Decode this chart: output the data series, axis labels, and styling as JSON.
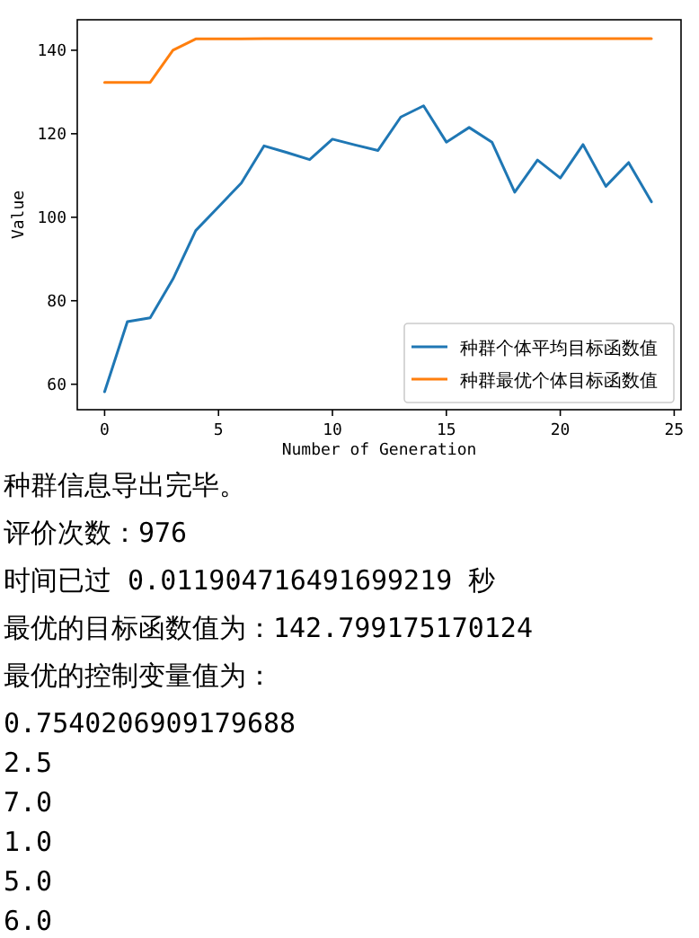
{
  "chart_data": {
    "type": "line",
    "xlabel": "Number of Generation",
    "ylabel": "Value",
    "xlim": [
      -1.2,
      25.3
    ],
    "ylim": [
      53.9,
      147.3
    ],
    "xticks": [
      0,
      5,
      10,
      15,
      20,
      25
    ],
    "yticks": [
      60,
      80,
      100,
      120,
      140
    ],
    "grid": false,
    "legend": "bottom right",
    "series": [
      {
        "name": "种群个体平均目标函数值",
        "color": "#1f77b4",
        "x": [
          0,
          1,
          2,
          3,
          4,
          5,
          6,
          7,
          8,
          9,
          10,
          11,
          12,
          13,
          14,
          15,
          16,
          17,
          18,
          19,
          20,
          21,
          22,
          23,
          24
        ],
        "values": [
          58.2,
          75.0,
          75.9,
          85.2,
          96.8,
          102.5,
          108.2,
          117.1,
          115.5,
          113.8,
          118.7,
          117.3,
          116.0,
          124.0,
          126.7,
          118.0,
          121.5,
          118.0,
          106.0,
          113.7,
          109.4,
          117.4,
          107.4,
          113.1,
          103.7
        ]
      },
      {
        "name": "种群最优个体目标函数值",
        "color": "#ff7f0e",
        "x": [
          0,
          1,
          2,
          3,
          4,
          5,
          6,
          7,
          8,
          9,
          10,
          11,
          12,
          13,
          14,
          15,
          16,
          17,
          18,
          19,
          20,
          21,
          22,
          23,
          24
        ],
        "values": [
          132.3,
          132.3,
          132.3,
          140.0,
          142.7,
          142.7,
          142.7,
          142.8,
          142.8,
          142.8,
          142.8,
          142.8,
          142.8,
          142.8,
          142.8,
          142.8,
          142.8,
          142.8,
          142.8,
          142.8,
          142.8,
          142.8,
          142.8,
          142.8,
          142.8
        ]
      }
    ],
    "annotations": [
      "种群信息导出完毕。",
      "评价次数：976",
      "时间已过 0.011904716491699219 秒",
      "最优的目标函数值为：142.799175170124",
      "最优的控制变量值为：",
      "0.7540206909179688",
      "2.5",
      "7.0",
      "1.0",
      "5.0",
      "6.0"
    ]
  }
}
